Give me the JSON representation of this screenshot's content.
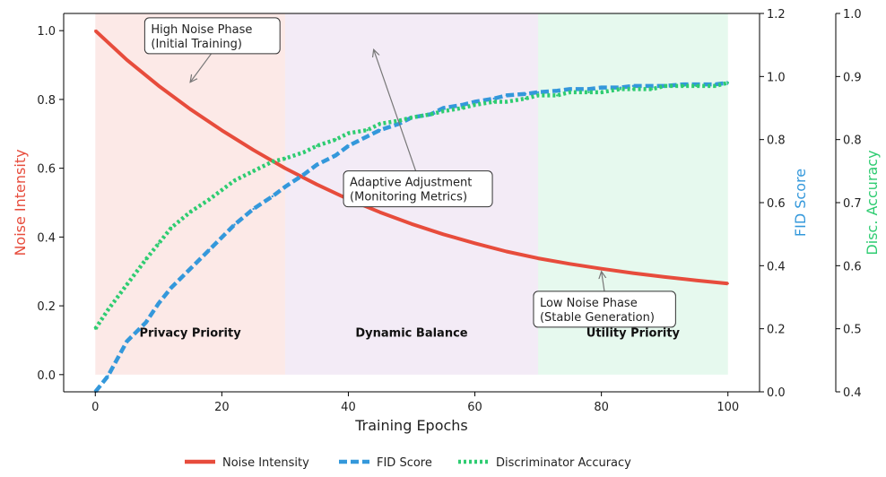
{
  "chart_data": {
    "type": "line",
    "xlabel": "Training Epochs",
    "xlim": [
      -5,
      105
    ],
    "x_ticks": [
      0,
      20,
      40,
      60,
      80,
      100
    ],
    "axes": {
      "noise": {
        "label": "Noise Intensity",
        "range": [
          -0.05,
          1.05
        ],
        "ticks": [
          0.0,
          0.2,
          0.4,
          0.6,
          0.8,
          1.0
        ],
        "color": "#e74c3c"
      },
      "fid": {
        "label": "FID Score",
        "range": [
          0.0,
          1.2
        ],
        "ticks": [
          0.0,
          0.2,
          0.4,
          0.6,
          0.8,
          1.0,
          1.2
        ],
        "color": "#3498db"
      },
      "disc": {
        "label": "Disc. Accuracy",
        "range": [
          0.4,
          1.0
        ],
        "ticks": [
          0.4,
          0.5,
          0.6,
          0.7,
          0.8,
          0.9,
          1.0
        ],
        "color": "#2ecc71"
      }
    },
    "phases": [
      {
        "label": "Privacy Priority",
        "x_start": 0,
        "x_end": 30,
        "color": "#f5b7b1"
      },
      {
        "label": "Dynamic Balance",
        "x_start": 30,
        "x_end": 70,
        "color": "#d7bde2"
      },
      {
        "label": "Utility Priority",
        "x_start": 70,
        "x_end": 100,
        "color": "#abebc6"
      }
    ],
    "series": [
      {
        "name": "Noise Intensity",
        "axis": "noise",
        "style": "solid",
        "color": "#e74c3c",
        "x": [
          0,
          5,
          10,
          15,
          20,
          25,
          30,
          35,
          40,
          45,
          50,
          55,
          60,
          65,
          70,
          75,
          80,
          85,
          90,
          95,
          100
        ],
        "values": [
          1.0,
          0.915,
          0.84,
          0.772,
          0.71,
          0.653,
          0.6,
          0.553,
          0.51,
          0.472,
          0.438,
          0.408,
          0.382,
          0.358,
          0.338,
          0.322,
          0.308,
          0.295,
          0.284,
          0.274,
          0.265
        ]
      },
      {
        "name": "FID Score",
        "axis": "fid",
        "style": "dashed",
        "color": "#3498db",
        "x": [
          0,
          2,
          5,
          8,
          10,
          12,
          15,
          18,
          20,
          22,
          25,
          28,
          30,
          33,
          35,
          38,
          40,
          43,
          45,
          48,
          50,
          53,
          55,
          58,
          60,
          63,
          65,
          68,
          70,
          73,
          75,
          78,
          80,
          83,
          85,
          88,
          90,
          93,
          95,
          98,
          100
        ],
        "values": [
          0.0,
          0.05,
          0.16,
          0.22,
          0.28,
          0.33,
          0.39,
          0.45,
          0.49,
          0.53,
          0.58,
          0.62,
          0.65,
          0.69,
          0.72,
          0.75,
          0.78,
          0.81,
          0.83,
          0.85,
          0.87,
          0.88,
          0.9,
          0.91,
          0.92,
          0.93,
          0.94,
          0.945,
          0.95,
          0.955,
          0.96,
          0.96,
          0.965,
          0.965,
          0.97,
          0.97,
          0.97,
          0.975,
          0.975,
          0.975,
          0.98
        ]
      },
      {
        "name": "Discriminator Accuracy",
        "axis": "disc",
        "style": "dotted",
        "color": "#2ecc71",
        "x": [
          0,
          2,
          5,
          8,
          10,
          12,
          15,
          18,
          20,
          22,
          25,
          28,
          30,
          33,
          35,
          38,
          40,
          43,
          45,
          48,
          50,
          53,
          55,
          58,
          60,
          63,
          65,
          68,
          70,
          73,
          75,
          78,
          80,
          83,
          85,
          88,
          90,
          93,
          95,
          98,
          100
        ],
        "values": [
          0.5,
          0.53,
          0.57,
          0.61,
          0.635,
          0.66,
          0.685,
          0.705,
          0.72,
          0.735,
          0.75,
          0.765,
          0.77,
          0.78,
          0.79,
          0.8,
          0.81,
          0.815,
          0.825,
          0.83,
          0.835,
          0.84,
          0.845,
          0.85,
          0.855,
          0.86,
          0.86,
          0.865,
          0.87,
          0.87,
          0.875,
          0.875,
          0.875,
          0.88,
          0.88,
          0.88,
          0.885,
          0.885,
          0.885,
          0.885,
          0.89
        ]
      }
    ],
    "annotations": [
      {
        "text": [
          "High Noise Phase",
          "(Initial Training)"
        ],
        "text_x": 18.5,
        "text_y": 0.985,
        "arrow_to": [
          15,
          0.85
        ]
      },
      {
        "text": [
          "Adaptive Adjustment",
          "(Monitoring Metrics)"
        ],
        "text_x": 51,
        "text_y": 0.54,
        "arrow_to": [
          44,
          0.945
        ]
      },
      {
        "text": [
          "Low Noise Phase",
          "(Stable Generation)"
        ],
        "text_x": 80.5,
        "text_y": 0.19,
        "arrow_to": [
          80,
          0.3
        ]
      }
    ],
    "legend": {
      "placement": "bottom-center"
    }
  }
}
